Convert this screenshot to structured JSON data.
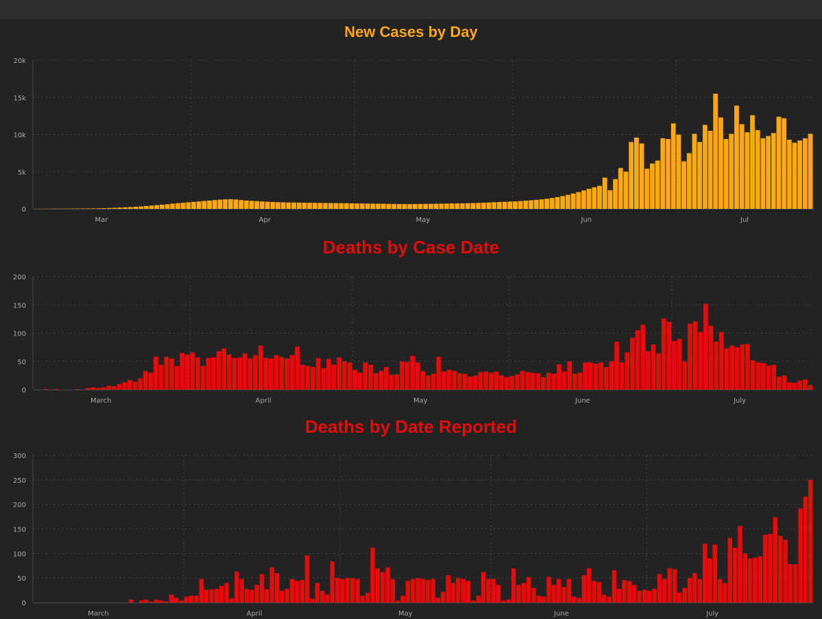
{
  "chart_data": [
    {
      "type": "bar",
      "title": "New Cases by Day",
      "color": "#ffa80a",
      "ylim": [
        0,
        20000
      ],
      "yticks": [
        {
          "value": 0,
          "label": "0"
        },
        {
          "value": 5000,
          "label": "5k"
        },
        {
          "value": 10000,
          "label": "10k"
        },
        {
          "value": 15000,
          "label": "15k"
        },
        {
          "value": 20000,
          "label": "20k"
        }
      ],
      "xticks": [
        {
          "index": 13,
          "label": "Mar"
        },
        {
          "index": 44,
          "label": "Apr"
        },
        {
          "index": 74,
          "label": "May"
        },
        {
          "index": 105,
          "label": "Jun"
        },
        {
          "index": 135,
          "label": "Jul"
        }
      ],
      "gridlines": [
        30,
        61,
        91,
        122
      ],
      "grid": true,
      "values": [
        10,
        15,
        20,
        25,
        30,
        30,
        35,
        40,
        45,
        50,
        55,
        60,
        70,
        90,
        110,
        140,
        170,
        200,
        240,
        280,
        320,
        380,
        440,
        500,
        560,
        620,
        700,
        760,
        820,
        880,
        940,
        1000,
        1060,
        1120,
        1180,
        1240,
        1280,
        1300,
        1260,
        1180,
        1120,
        1080,
        1040,
        1000,
        960,
        930,
        900,
        880,
        860,
        850,
        840,
        830,
        820,
        810,
        800,
        790,
        780,
        770,
        760,
        750,
        740,
        730,
        720,
        710,
        700,
        690,
        680,
        670,
        660,
        650,
        640,
        640,
        650,
        660,
        670,
        680,
        690,
        700,
        710,
        720,
        730,
        740,
        760,
        780,
        800,
        830,
        860,
        890,
        920,
        950,
        980,
        1010,
        1050,
        1100,
        1150,
        1210,
        1280,
        1360,
        1460,
        1580,
        1720,
        1880,
        2060,
        2260,
        2480,
        2700,
        2900,
        3100,
        4200,
        2500,
        4000,
        5500,
        5000,
        9000,
        9600,
        8800,
        5400,
        6100,
        6500,
        9500,
        9400,
        11500,
        10000,
        6400,
        7500,
        10100,
        9000,
        11300,
        10500,
        15500,
        12300,
        9400,
        10100,
        13900,
        11400,
        10300,
        12600,
        10600,
        9500,
        9800,
        10200,
        12400,
        12200,
        9300,
        8900,
        9200,
        9500,
        10100
      ]
    },
    {
      "type": "bar",
      "title": "Deaths by Case Date",
      "color": "#e80b0b",
      "ylim": [
        0,
        200
      ],
      "yticks": [
        {
          "value": 0,
          "label": "0"
        },
        {
          "value": 50,
          "label": "50"
        },
        {
          "value": 100,
          "label": "100"
        },
        {
          "value": 150,
          "label": "150"
        },
        {
          "value": 200,
          "label": "200"
        }
      ],
      "xticks": [
        {
          "index": 13,
          "label": "March"
        },
        {
          "index": 44,
          "label": "April"
        },
        {
          "index": 74,
          "label": "May"
        },
        {
          "index": 105,
          "label": "June"
        },
        {
          "index": 135,
          "label": "July"
        }
      ],
      "gridlines": [
        30,
        61,
        91,
        122
      ],
      "grid": true,
      "values": [
        0,
        0,
        1,
        0,
        1,
        0,
        0,
        0,
        1,
        0,
        3,
        4,
        3,
        4,
        7,
        6,
        10,
        13,
        17,
        14,
        20,
        33,
        30,
        58,
        44,
        58,
        55,
        42,
        65,
        62,
        66,
        57,
        42,
        56,
        57,
        68,
        73,
        62,
        56,
        57,
        64,
        55,
        61,
        78,
        56,
        55,
        61,
        58,
        55,
        61,
        76,
        44,
        42,
        40,
        56,
        38,
        54,
        44,
        57,
        50,
        48,
        35,
        30,
        48,
        44,
        29,
        33,
        40,
        26,
        27,
        50,
        49,
        60,
        48,
        33,
        25,
        28,
        58,
        32,
        35,
        33,
        29,
        28,
        23,
        25,
        31,
        32,
        30,
        32,
        25,
        22,
        24,
        27,
        33,
        31,
        30,
        29,
        22,
        30,
        28,
        45,
        32,
        50,
        28,
        30,
        48,
        48,
        46,
        48,
        40,
        50,
        85,
        48,
        66,
        92,
        105,
        115,
        68,
        80,
        64,
        126,
        120,
        86,
        90,
        50,
        117,
        121,
        102,
        152,
        113,
        85,
        102,
        73,
        78,
        75,
        80,
        81,
        52,
        48,
        47,
        43,
        44,
        23,
        25,
        13,
        12,
        16,
        18,
        8
      ]
    },
    {
      "type": "bar",
      "title": "Deaths by Date Reported",
      "color": "#e80b0b",
      "ylim": [
        0,
        300
      ],
      "yticks": [
        {
          "value": 0,
          "label": "0"
        },
        {
          "value": 50,
          "label": "50"
        },
        {
          "value": 100,
          "label": "100"
        },
        {
          "value": 150,
          "label": "150"
        },
        {
          "value": 200,
          "label": "200"
        },
        {
          "value": 250,
          "label": "250"
        },
        {
          "value": 300,
          "label": "300"
        }
      ],
      "xticks": [
        {
          "index": 13,
          "label": "March"
        },
        {
          "index": 44,
          "label": "April"
        },
        {
          "index": 74,
          "label": "May"
        },
        {
          "index": 105,
          "label": "June"
        },
        {
          "index": 135,
          "label": "July"
        }
      ],
      "gridlines": [
        30,
        61,
        91,
        122
      ],
      "grid": true,
      "values": [
        0,
        0,
        0,
        0,
        0,
        0,
        0,
        0,
        0,
        0,
        0,
        0,
        0,
        0,
        0,
        0,
        0,
        0,
        0,
        6,
        0,
        4,
        6,
        2,
        6,
        4,
        2,
        16,
        10,
        4,
        12,
        14,
        14,
        48,
        26,
        27,
        28,
        34,
        40,
        8,
        63,
        48,
        28,
        26,
        36,
        58,
        27,
        72,
        60,
        24,
        28,
        48,
        44,
        46,
        96,
        8,
        40,
        24,
        16,
        84,
        50,
        48,
        50,
        50,
        48,
        14,
        20,
        112,
        70,
        62,
        72,
        48,
        4,
        14,
        44,
        48,
        50,
        48,
        46,
        48,
        10,
        22,
        56,
        40,
        50,
        48,
        44,
        4,
        14,
        62,
        48,
        48,
        36,
        4,
        6,
        70,
        36,
        40,
        52,
        30,
        14,
        12,
        52,
        36,
        48,
        32,
        48,
        12,
        10,
        56,
        70,
        44,
        42,
        16,
        12,
        66,
        28,
        46,
        44,
        36,
        24,
        26,
        24,
        28,
        58,
        48,
        70,
        68,
        20,
        30,
        50,
        60,
        48,
        120,
        90,
        118,
        48,
        40,
        132,
        112,
        156,
        100,
        90,
        92,
        94,
        138,
        140,
        174,
        136,
        128,
        78,
        78,
        192,
        216,
        250
      ]
    }
  ]
}
